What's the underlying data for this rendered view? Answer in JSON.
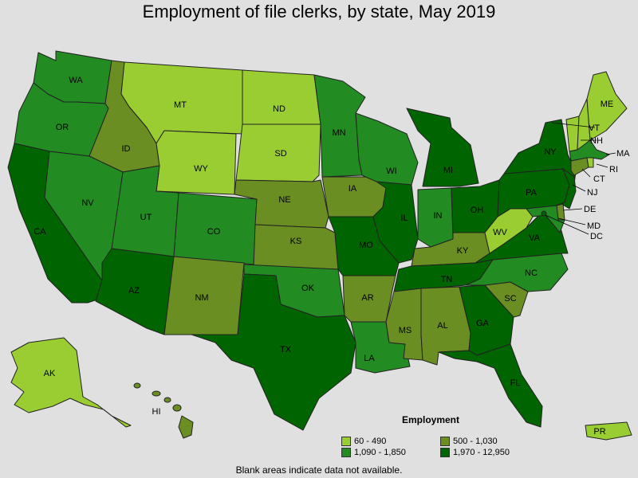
{
  "title": "Employment of file clerks, by state, May 2019",
  "legend": {
    "title": "Employment",
    "bins": [
      {
        "label": "60 - 490",
        "color": "#9acd32"
      },
      {
        "label": "500 - 1,030",
        "color": "#6b8e23"
      },
      {
        "label": "1,090 - 1,850",
        "color": "#228b22"
      },
      {
        "label": "1,970 - 12,950",
        "color": "#006400"
      }
    ]
  },
  "footnote": "Blank areas indicate data not available.",
  "states": {
    "WA": {
      "label": "WA",
      "bin": 2
    },
    "OR": {
      "label": "OR",
      "bin": 2
    },
    "CA": {
      "label": "CA",
      "bin": 3
    },
    "ID": {
      "label": "ID",
      "bin": 1
    },
    "NV": {
      "label": "NV",
      "bin": 2
    },
    "MT": {
      "label": "MT",
      "bin": 0
    },
    "WY": {
      "label": "WY",
      "bin": 0
    },
    "UT": {
      "label": "UT",
      "bin": 2
    },
    "AZ": {
      "label": "AZ",
      "bin": 3
    },
    "CO": {
      "label": "CO",
      "bin": 2
    },
    "NM": {
      "label": "NM",
      "bin": 1
    },
    "ND": {
      "label": "ND",
      "bin": 0
    },
    "SD": {
      "label": "SD",
      "bin": 0
    },
    "NE": {
      "label": "NE",
      "bin": 1
    },
    "KS": {
      "label": "KS",
      "bin": 1
    },
    "OK": {
      "label": "OK",
      "bin": 2
    },
    "TX": {
      "label": "TX",
      "bin": 3
    },
    "MN": {
      "label": "MN",
      "bin": 2
    },
    "IA": {
      "label": "IA",
      "bin": 1
    },
    "MO": {
      "label": "MO",
      "bin": 3
    },
    "AR": {
      "label": "AR",
      "bin": 1
    },
    "LA": {
      "label": "LA",
      "bin": 2
    },
    "WI": {
      "label": "WI",
      "bin": 2
    },
    "IL": {
      "label": "IL",
      "bin": 3
    },
    "MI": {
      "label": "MI",
      "bin": 3
    },
    "IN": {
      "label": "IN",
      "bin": 2
    },
    "OH": {
      "label": "OH",
      "bin": 3
    },
    "KY": {
      "label": "KY",
      "bin": 1
    },
    "TN": {
      "label": "TN",
      "bin": 3
    },
    "MS": {
      "label": "MS",
      "bin": 1
    },
    "AL": {
      "label": "AL",
      "bin": 1
    },
    "GA": {
      "label": "GA",
      "bin": 3
    },
    "FL": {
      "label": "FL",
      "bin": 3
    },
    "SC": {
      "label": "SC",
      "bin": 1
    },
    "NC": {
      "label": "NC",
      "bin": 2
    },
    "VA": {
      "label": "VA",
      "bin": 3
    },
    "WV": {
      "label": "WV",
      "bin": 0
    },
    "PA": {
      "label": "PA",
      "bin": 3
    },
    "NY": {
      "label": "NY",
      "bin": 3
    },
    "ME": {
      "label": "ME",
      "bin": 0
    },
    "VT": {
      "label": "VT",
      "bin": 0
    },
    "NH": {
      "label": "NH",
      "bin": 0
    },
    "MA": {
      "label": "MA",
      "bin": 2
    },
    "RI": {
      "label": "RI",
      "bin": 0
    },
    "CT": {
      "label": "CT",
      "bin": 1
    },
    "NJ": {
      "label": "NJ",
      "bin": 3
    },
    "DE": {
      "label": "DE",
      "bin": 1
    },
    "MD": {
      "label": "MD",
      "bin": 2
    },
    "DC": {
      "label": "DC",
      "bin": 3
    },
    "AK": {
      "label": "AK",
      "bin": 0
    },
    "HI": {
      "label": "HI",
      "bin": 1
    },
    "PR": {
      "label": "PR",
      "bin": 0
    }
  }
}
